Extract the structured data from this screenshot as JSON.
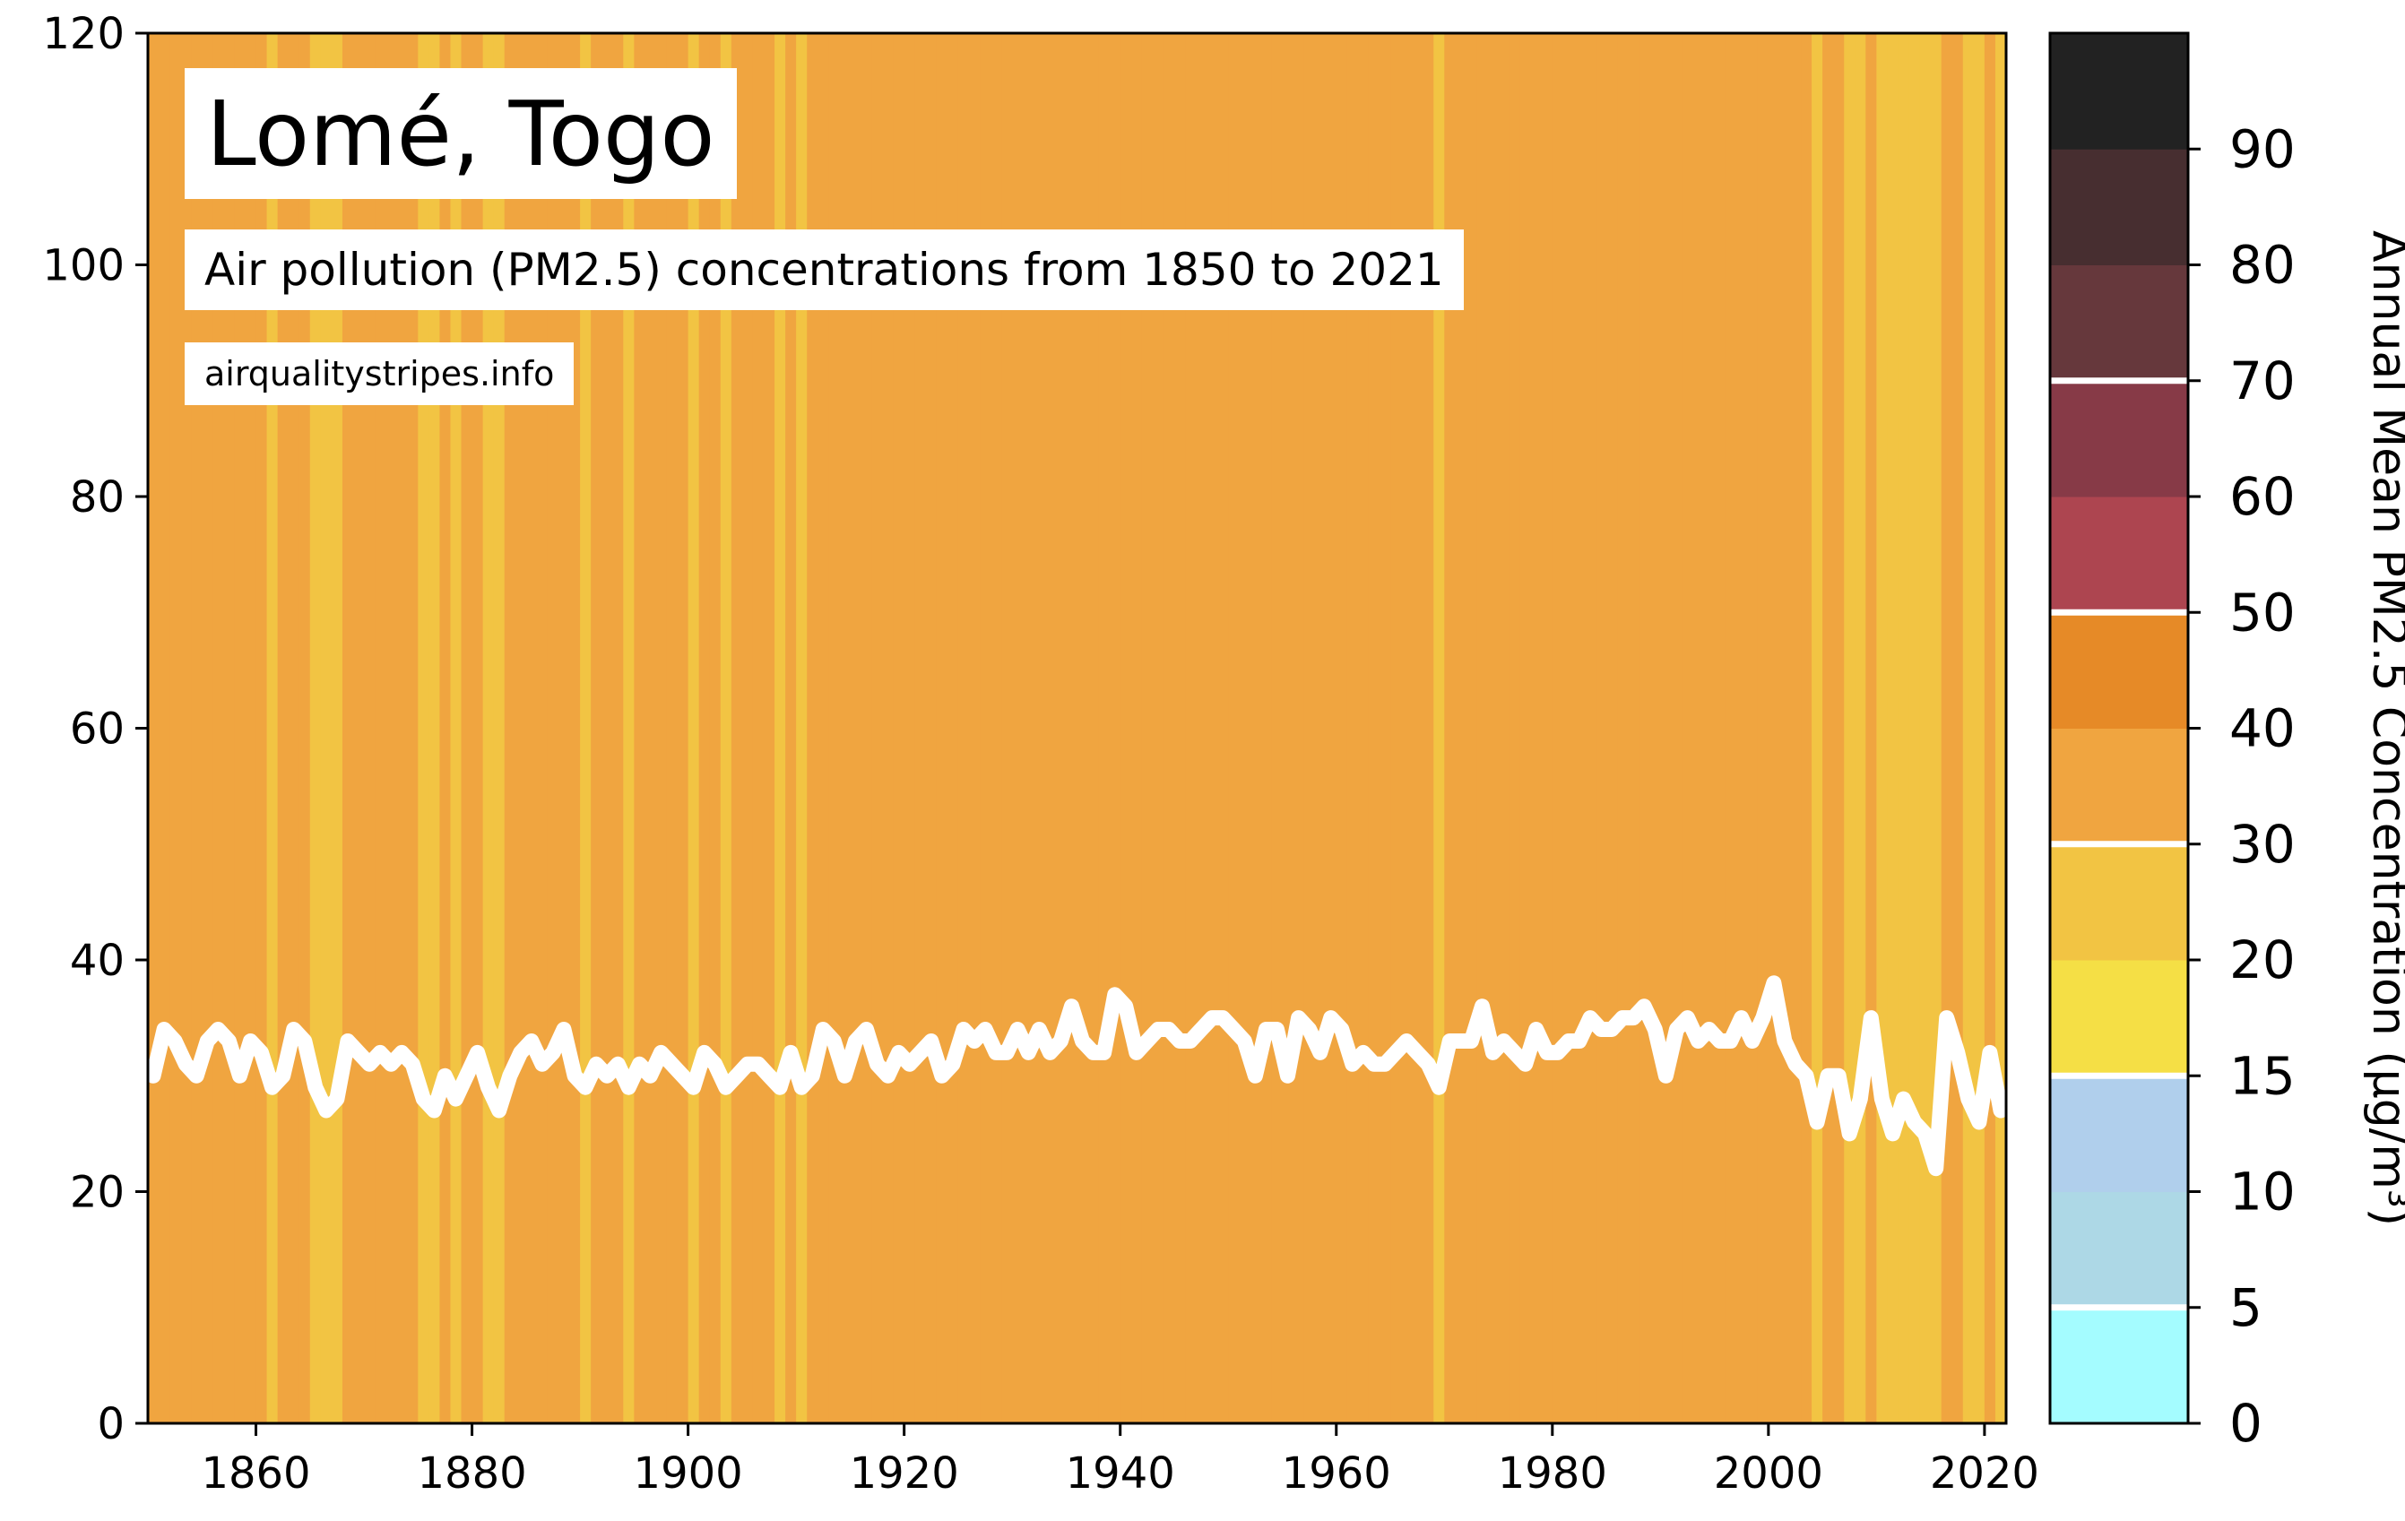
{
  "title": "Lomé, Togo",
  "subtitle": "Air pollution (PM2.5) concentrations from 1850 to 2021",
  "source": "airqualitystripes.info",
  "colorbar_label": "Annual Mean PM2.5 Concentration (μg/m³)",
  "colors": {
    "line": "#ffffff",
    "stripe_20_30": "#f2c443",
    "stripe_30_40": "#f0a540"
  },
  "chart_data": {
    "type": "line",
    "title": "Lomé, Togo",
    "subtitle": "Air pollution (PM2.5) concentrations from 1850 to 2021",
    "xlabel": "",
    "ylabel": "",
    "xlim": [
      1850,
      2022
    ],
    "ylim": [
      0,
      120
    ],
    "xticks": [
      1860,
      1880,
      1900,
      1920,
      1940,
      1960,
      1980,
      2000,
      2020
    ],
    "yticks": [
      0,
      20,
      40,
      60,
      80,
      100,
      120
    ],
    "grid": false,
    "background": "vertical stripes colored by annual PM2.5 value",
    "years": [
      1850,
      1851,
      1852,
      1853,
      1854,
      1855,
      1856,
      1857,
      1858,
      1859,
      1860,
      1861,
      1862,
      1863,
      1864,
      1865,
      1866,
      1867,
      1868,
      1869,
      1870,
      1871,
      1872,
      1873,
      1874,
      1875,
      1876,
      1877,
      1878,
      1879,
      1880,
      1881,
      1882,
      1883,
      1884,
      1885,
      1886,
      1887,
      1888,
      1889,
      1890,
      1891,
      1892,
      1893,
      1894,
      1895,
      1896,
      1897,
      1898,
      1899,
      1900,
      1901,
      1902,
      1903,
      1904,
      1905,
      1906,
      1907,
      1908,
      1909,
      1910,
      1911,
      1912,
      1913,
      1914,
      1915,
      1916,
      1917,
      1918,
      1919,
      1920,
      1921,
      1922,
      1923,
      1924,
      1925,
      1926,
      1927,
      1928,
      1929,
      1930,
      1931,
      1932,
      1933,
      1934,
      1935,
      1936,
      1937,
      1938,
      1939,
      1940,
      1941,
      1942,
      1943,
      1944,
      1945,
      1946,
      1947,
      1948,
      1949,
      1950,
      1951,
      1952,
      1953,
      1954,
      1955,
      1956,
      1957,
      1958,
      1959,
      1960,
      1961,
      1962,
      1963,
      1964,
      1965,
      1966,
      1967,
      1968,
      1969,
      1970,
      1971,
      1972,
      1973,
      1974,
      1975,
      1976,
      1977,
      1978,
      1979,
      1980,
      1981,
      1982,
      1983,
      1984,
      1985,
      1986,
      1987,
      1988,
      1989,
      1990,
      1991,
      1992,
      1993,
      1994,
      1995,
      1996,
      1997,
      1998,
      1999,
      2000,
      2001,
      2002,
      2003,
      2004,
      2005,
      2006,
      2007,
      2008,
      2009,
      2010,
      2011,
      2012,
      2013,
      2014,
      2015,
      2016,
      2017,
      2018,
      2019,
      2020,
      2021
    ],
    "values": [
      30,
      34,
      33,
      31,
      30,
      33,
      34,
      33,
      30,
      33,
      32,
      29,
      30,
      34,
      33,
      29,
      27,
      28,
      33,
      32,
      31,
      32,
      31,
      32,
      31,
      28,
      27,
      30,
      28,
      30,
      32,
      29,
      27,
      30,
      32,
      33,
      31,
      32,
      34,
      30,
      29,
      31,
      30,
      31,
      29,
      31,
      30,
      32,
      31,
      30,
      29,
      32,
      31,
      29,
      30,
      31,
      31,
      30,
      29,
      32,
      29,
      30,
      34,
      33,
      30,
      33,
      34,
      31,
      30,
      32,
      31,
      32,
      33,
      30,
      31,
      34,
      33,
      34,
      32,
      32,
      34,
      32,
      34,
      32,
      33,
      36,
      33,
      32,
      32,
      37,
      36,
      32,
      33,
      34,
      34,
      33,
      33,
      34,
      35,
      35,
      34,
      33,
      30,
      34,
      34,
      30,
      35,
      34,
      32,
      35,
      34,
      31,
      32,
      31,
      31,
      32,
      33,
      32,
      31,
      29,
      33,
      33,
      33,
      36,
      32,
      33,
      32,
      31,
      34,
      32,
      32,
      33,
      33,
      35,
      34,
      34,
      35,
      35,
      36,
      34,
      30,
      34,
      35,
      33,
      34,
      33,
      33,
      35,
      33,
      35,
      38,
      33,
      31,
      30,
      26,
      30,
      30,
      25,
      28,
      35,
      28,
      25,
      28,
      26,
      25,
      22,
      35,
      32,
      28,
      26,
      32,
      27
    ],
    "colorbar": {
      "label": "Annual Mean PM2.5 Concentration (μg/m³)",
      "tick_labels": [
        "0",
        "5",
        "10",
        "15",
        "20",
        "30",
        "40",
        "50",
        "60",
        "70",
        "80",
        "90"
      ],
      "bins": [
        {
          "min": 0,
          "max": 5,
          "color": "#a4fcff"
        },
        {
          "min": 5,
          "max": 10,
          "color": "#add8e6"
        },
        {
          "min": 10,
          "max": 15,
          "color": "#b0cfec"
        },
        {
          "min": 15,
          "max": 20,
          "color": "#f5df45"
        },
        {
          "min": 20,
          "max": 30,
          "color": "#f2c443"
        },
        {
          "min": 30,
          "max": 40,
          "color": "#f0a540"
        },
        {
          "min": 40,
          "max": 50,
          "color": "#e68a27"
        },
        {
          "min": 50,
          "max": 60,
          "color": "#ad4550"
        },
        {
          "min": 60,
          "max": 70,
          "color": "#873a47"
        },
        {
          "min": 70,
          "max": 80,
          "color": "#66383c"
        },
        {
          "min": 80,
          "max": 90,
          "color": "#472e30"
        },
        {
          "min": 90,
          "max": 100,
          "color": "#222222"
        }
      ],
      "separators_at": [
        5,
        15,
        30,
        50,
        70
      ]
    }
  }
}
